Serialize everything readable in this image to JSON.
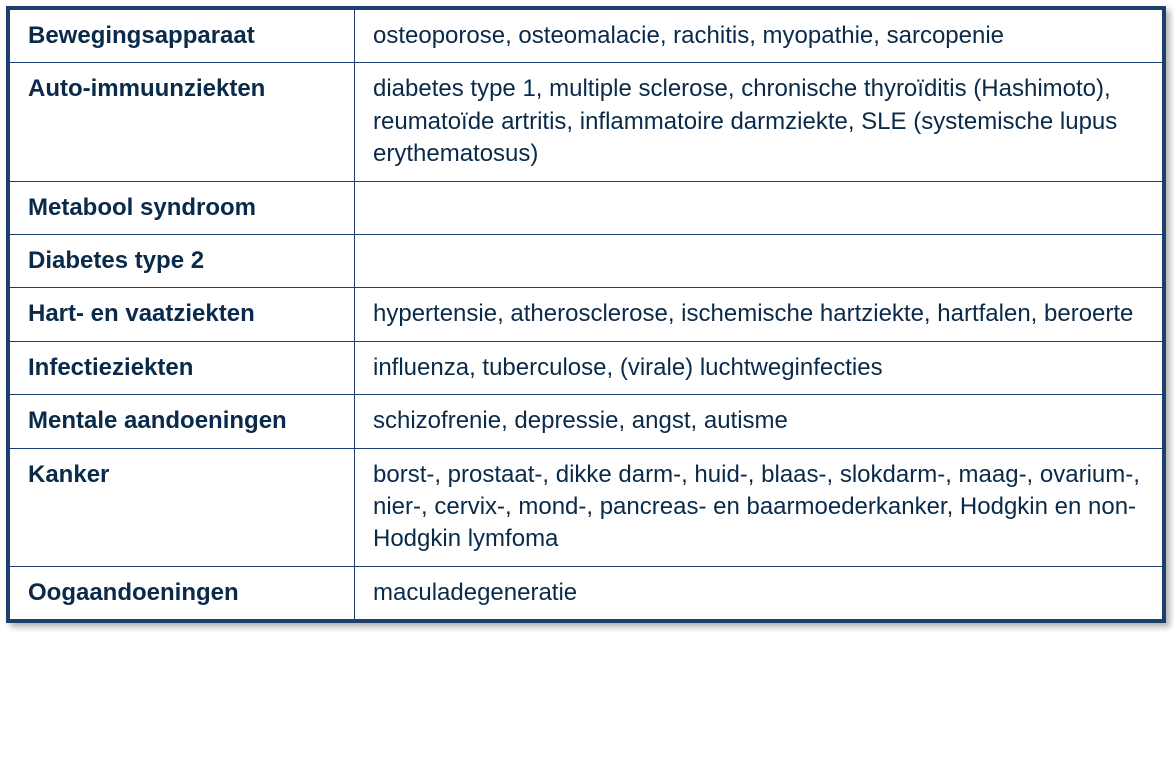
{
  "table": {
    "type": "table",
    "border_color": "#1d3f6e",
    "outer_border_width": 3,
    "inner_border_width": 1,
    "background_color": "#ffffff",
    "text_color": "#0a2a4a",
    "font_size": 24,
    "line_height": 1.35,
    "category_column_width": 345,
    "category_font_weight": 700,
    "details_font_weight": 400,
    "cell_padding": "10px 18px",
    "shadow": "4px 4px 6px rgba(0,0,0,0.3)",
    "rows": [
      {
        "category": "Bewegingsapparaat",
        "details": "osteoporose, osteomalacie, rachitis, myopathie, sarcopenie"
      },
      {
        "category": "Auto-immuunziekten",
        "details": "diabetes type 1, multiple sclerose, chronische thyroïditis (Hashimoto), reumatoïde artritis, inflammatoire darmziekte, SLE (systemische lupus erythematosus)"
      },
      {
        "category": "Metabool syndroom",
        "details": ""
      },
      {
        "category": "Diabetes type 2",
        "details": ""
      },
      {
        "category": "Hart- en vaatziekten",
        "details": "hypertensie, atherosclerose, ischemische hartziekte, hartfalen, beroerte"
      },
      {
        "category": "Infectieziekten",
        "details": "influenza, tuberculose, (virale) luchtweginfecties"
      },
      {
        "category": "Mentale aandoeningen",
        "details": "schizofrenie, depressie, angst, autisme"
      },
      {
        "category": "Kanker",
        "details": "borst-, prostaat-, dikke darm-, huid-, blaas-, slokdarm-, maag-, ovarium-, nier-, cervix-, mond-, pancreas- en baarmoederkanker, Hodgkin en non-Hodgkin lymfoma"
      },
      {
        "category": "Oogaandoeningen",
        "details": "maculadegeneratie"
      }
    ]
  }
}
